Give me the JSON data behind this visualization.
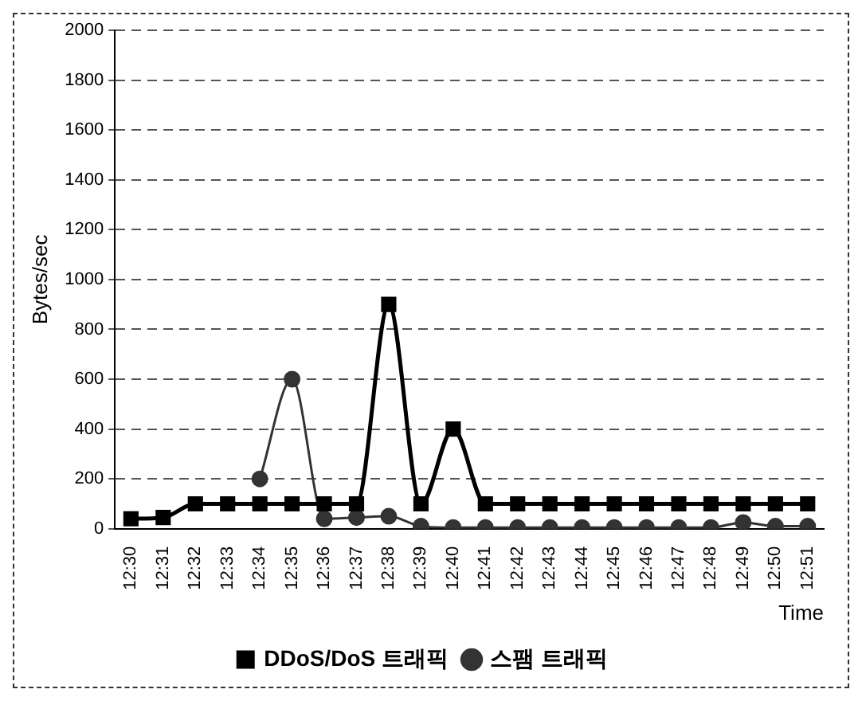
{
  "chart_data": {
    "type": "line",
    "ylabel": "Bytes/sec",
    "xlabel": "Time",
    "categories": [
      "12:30",
      "12:31",
      "12:32",
      "12:33",
      "12:34",
      "12:35",
      "12:36",
      "12:37",
      "12:38",
      "12:39",
      "12:40",
      "12:41",
      "12:42",
      "12:43",
      "12:44",
      "12:45",
      "12:46",
      "12:47",
      "12:48",
      "12:49",
      "12:50",
      "12:51"
    ],
    "series": [
      {
        "name": "DDoS/DoS 트래픽",
        "color": "#000000",
        "marker": "square",
        "values": [
          40,
          45,
          100,
          100,
          100,
          100,
          100,
          100,
          900,
          100,
          400,
          100,
          100,
          100,
          100,
          100,
          100,
          100,
          100,
          100,
          100,
          100
        ]
      },
      {
        "name": "스팸 트래픽",
        "color": "#333333",
        "marker": "circle",
        "values": [
          null,
          null,
          null,
          null,
          200,
          600,
          40,
          45,
          50,
          10,
          5,
          5,
          5,
          5,
          5,
          5,
          5,
          5,
          5,
          25,
          10,
          10
        ]
      }
    ],
    "ylim": [
      0,
      2000
    ],
    "yticks": [
      0,
      200,
      400,
      600,
      800,
      1000,
      1200,
      1400,
      1600,
      1800,
      2000
    ],
    "grid": "y",
    "line_style": "solid",
    "legend": "bottom"
  }
}
